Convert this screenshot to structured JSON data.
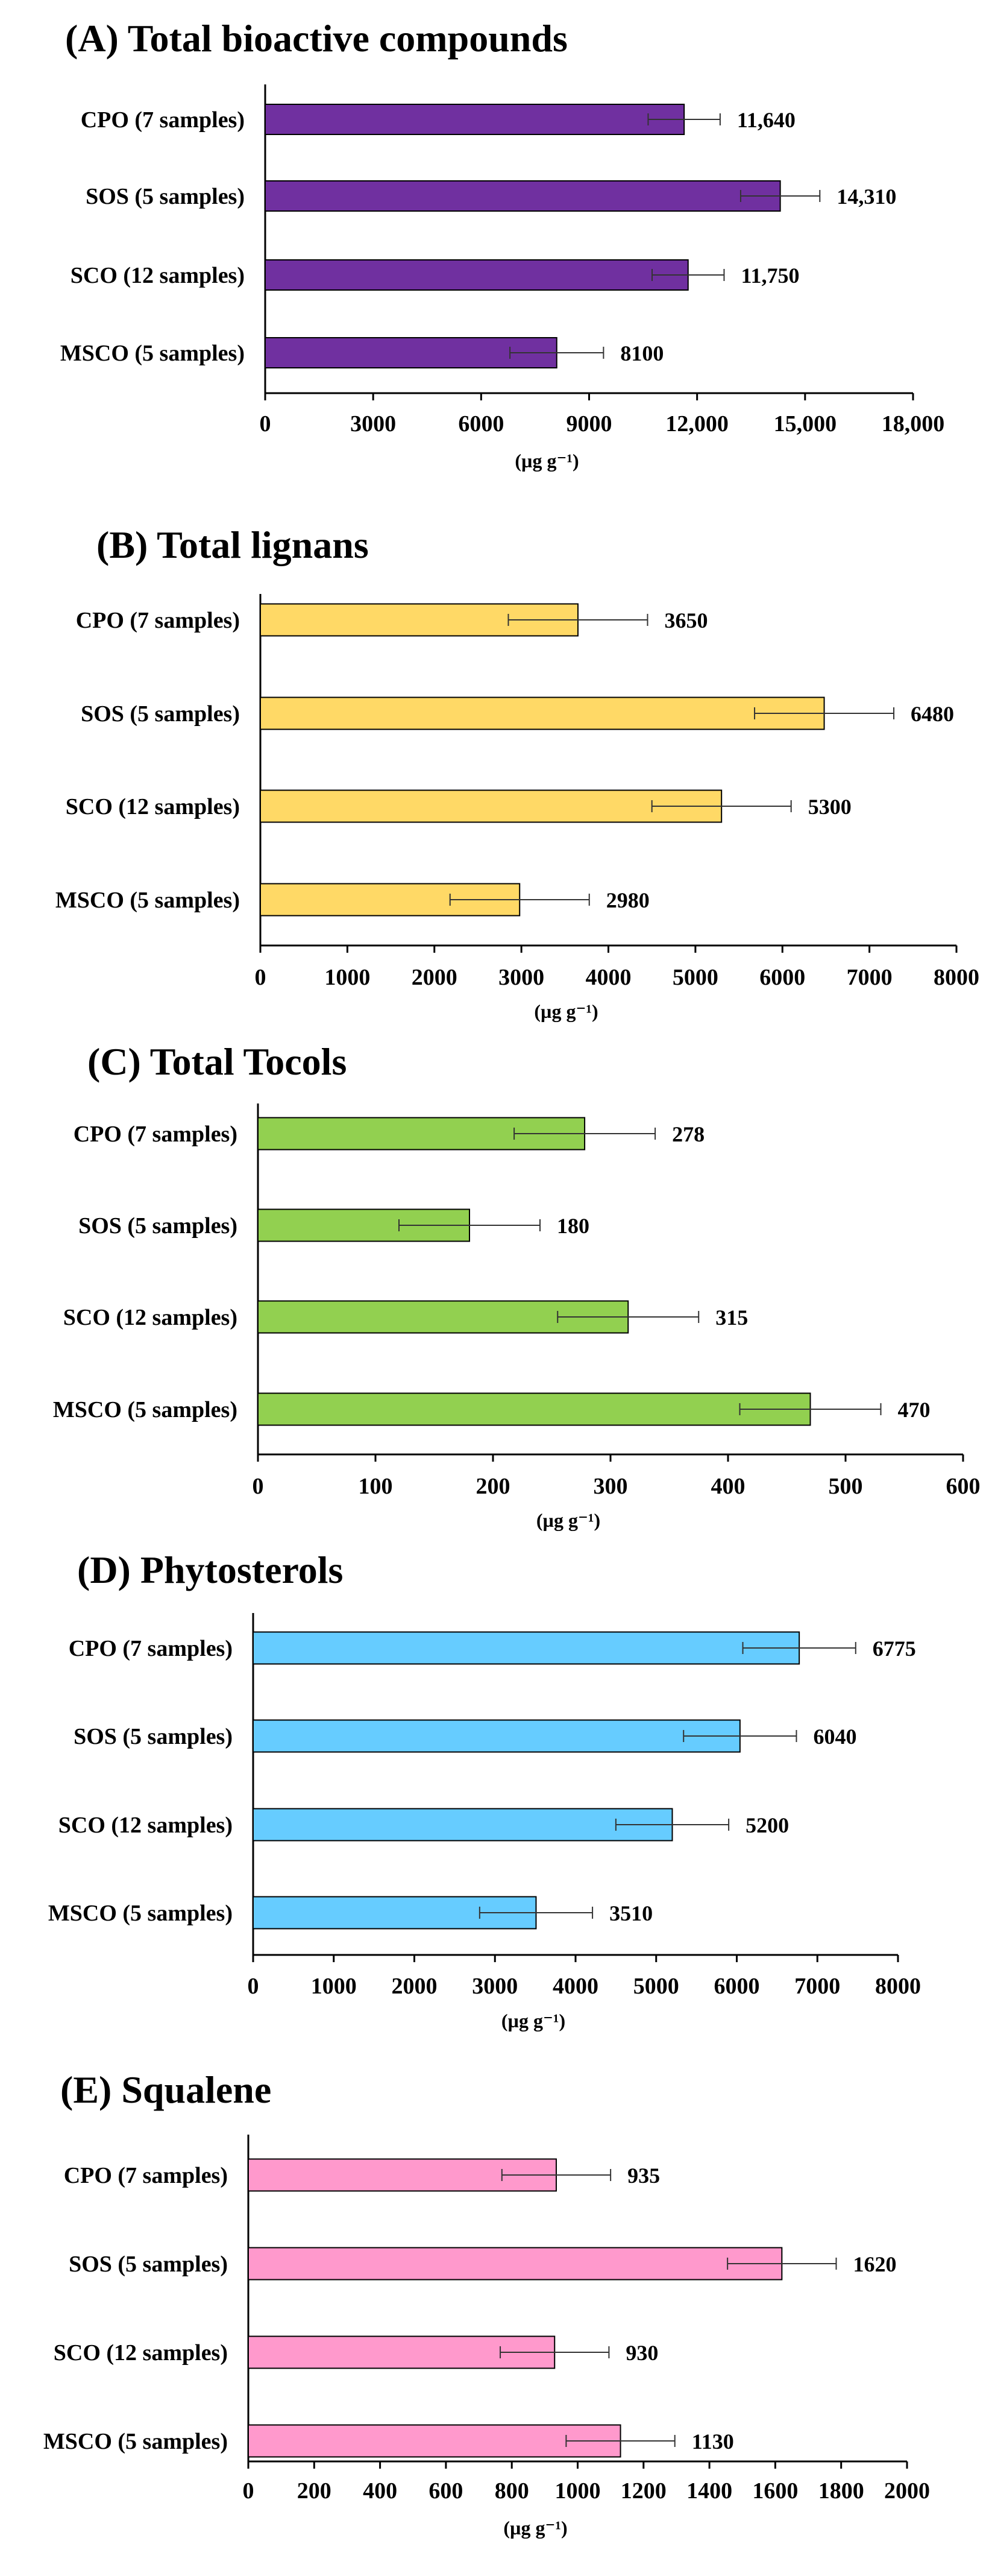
{
  "chart_data": [
    {
      "type": "bar",
      "orientation": "horizontal",
      "title": "(A) Total bioactive compounds",
      "categories": [
        "CPO (7 samples)",
        "SOS (5 samples)",
        "SCO (12 samples)",
        "MSCO (5 samples)"
      ],
      "values": [
        11640,
        14310,
        11750,
        8100
      ],
      "errors": [
        1000,
        1100,
        1000,
        1300
      ],
      "value_labels": [
        "11,640",
        "14,310",
        "11,750",
        "8100"
      ],
      "xlim": [
        0,
        18000
      ],
      "xticks": [
        0,
        3000,
        6000,
        9000,
        12000,
        15000,
        18000
      ],
      "xtick_labels": [
        "0",
        "3000",
        "6000",
        "9000",
        "12,000",
        "15,000",
        "18,000"
      ],
      "xlabel": "(µg g⁻¹)",
      "color": "#7030a0"
    },
    {
      "type": "bar",
      "orientation": "horizontal",
      "title": "(B) Total lignans",
      "categories": [
        "CPO (7 samples)",
        "SOS (5 samples)",
        "SCO (12 samples)",
        "MSCO (5 samples)"
      ],
      "values": [
        3650,
        6480,
        5300,
        2980
      ],
      "errors": [
        800,
        800,
        800,
        800
      ],
      "value_labels": [
        "3650",
        "6480",
        "5300",
        "2980"
      ],
      "xlim": [
        0,
        8000
      ],
      "xticks": [
        0,
        1000,
        2000,
        3000,
        4000,
        5000,
        6000,
        7000,
        8000
      ],
      "xtick_labels": [
        "0",
        "1000",
        "2000",
        "3000",
        "4000",
        "5000",
        "6000",
        "7000",
        "8000"
      ],
      "xlabel": "(µg g⁻¹)",
      "color": "#ffd966"
    },
    {
      "type": "bar",
      "orientation": "horizontal",
      "title": "(C) Total Tocols",
      "categories": [
        "CPO (7 samples)",
        "SOS (5 samples)",
        "SCO (12 samples)",
        "MSCO (5 samples)"
      ],
      "values": [
        278,
        180,
        315,
        470
      ],
      "errors": [
        60,
        60,
        60,
        60
      ],
      "value_labels": [
        "278",
        "180",
        "315",
        "470"
      ],
      "xlim": [
        0,
        600
      ],
      "xticks": [
        0,
        100,
        200,
        300,
        400,
        500,
        600
      ],
      "xtick_labels": [
        "0",
        "100",
        "200",
        "300",
        "400",
        "500",
        "600"
      ],
      "xlabel": "(µg g⁻¹)",
      "color": "#92d050"
    },
    {
      "type": "bar",
      "orientation": "horizontal",
      "title": "(D) Phytosterols",
      "categories": [
        "CPO (7 samples)",
        "SOS (5 samples)",
        "SCO (12 samples)",
        "MSCO (5 samples)"
      ],
      "values": [
        6775,
        6040,
        5200,
        3510
      ],
      "errors": [
        700,
        700,
        700,
        700
      ],
      "value_labels": [
        "6775",
        "6040",
        "5200",
        "3510"
      ],
      "xlim": [
        0,
        8000
      ],
      "xticks": [
        0,
        1000,
        2000,
        3000,
        4000,
        5000,
        6000,
        7000,
        8000
      ],
      "xtick_labels": [
        "0",
        "1000",
        "2000",
        "3000",
        "4000",
        "5000",
        "6000",
        "7000",
        "8000"
      ],
      "xlabel": "(µg g⁻¹)",
      "color": "#66ccff"
    },
    {
      "type": "bar",
      "orientation": "horizontal",
      "title": "(E) Squalene",
      "categories": [
        "CPO (7 samples)",
        "SOS (5 samples)",
        "SCO (12 samples)",
        "MSCO (5 samples)"
      ],
      "values": [
        935,
        1620,
        930,
        1130
      ],
      "errors": [
        165,
        165,
        165,
        165
      ],
      "value_labels": [
        "935",
        "1620",
        "930",
        "1130"
      ],
      "xlim": [
        0,
        2000
      ],
      "xticks": [
        0,
        200,
        400,
        600,
        800,
        1000,
        1200,
        1400,
        1600,
        1800,
        2000
      ],
      "xtick_labels": [
        "0",
        "200",
        "400",
        "600",
        "800",
        "1000",
        "1200",
        "1400",
        "1600",
        "1800",
        "2000"
      ],
      "xlabel": "(µg g⁻¹)",
      "color": "#ff99cc"
    }
  ]
}
